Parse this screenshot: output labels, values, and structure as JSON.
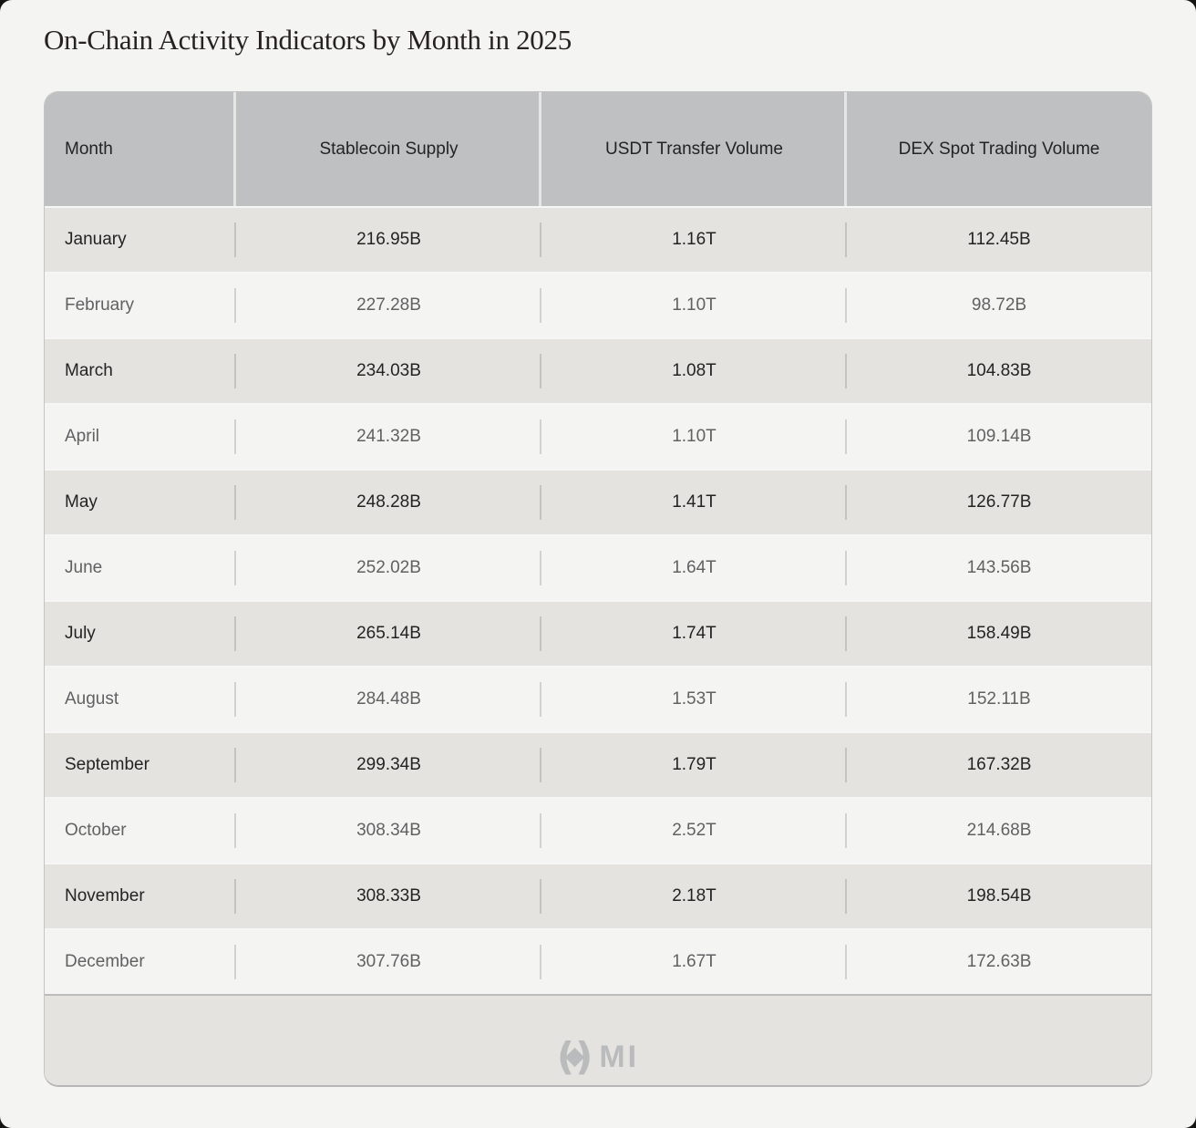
{
  "page": {
    "title": "On-Chain Activity Indicators by Month in 2025"
  },
  "table": {
    "columns": [
      "Month",
      "Stablecoin Supply",
      "USDT Transfer Volume",
      "DEX Spot Trading Volume"
    ],
    "rows": [
      {
        "month": "January",
        "stablecoin_supply": "216.95B",
        "usdt_transfer_volume": "1.16T",
        "dex_spot_trading_volume": "112.45B"
      },
      {
        "month": "February",
        "stablecoin_supply": "227.28B",
        "usdt_transfer_volume": "1.10T",
        "dex_spot_trading_volume": "98.72B"
      },
      {
        "month": "March",
        "stablecoin_supply": "234.03B",
        "usdt_transfer_volume": "1.08T",
        "dex_spot_trading_volume": "104.83B"
      },
      {
        "month": "April",
        "stablecoin_supply": "241.32B",
        "usdt_transfer_volume": "1.10T",
        "dex_spot_trading_volume": "109.14B"
      },
      {
        "month": "May",
        "stablecoin_supply": "248.28B",
        "usdt_transfer_volume": "1.41T",
        "dex_spot_trading_volume": "126.77B"
      },
      {
        "month": "June",
        "stablecoin_supply": "252.02B",
        "usdt_transfer_volume": "1.64T",
        "dex_spot_trading_volume": "143.56B"
      },
      {
        "month": "July",
        "stablecoin_supply": "265.14B",
        "usdt_transfer_volume": "1.74T",
        "dex_spot_trading_volume": "158.49B"
      },
      {
        "month": "August",
        "stablecoin_supply": "284.48B",
        "usdt_transfer_volume": "1.53T",
        "dex_spot_trading_volume": "152.11B"
      },
      {
        "month": "September",
        "stablecoin_supply": "299.34B",
        "usdt_transfer_volume": "1.79T",
        "dex_spot_trading_volume": "167.32B"
      },
      {
        "month": "October",
        "stablecoin_supply": "308.34B",
        "usdt_transfer_volume": "2.52T",
        "dex_spot_trading_volume": "214.68B"
      },
      {
        "month": "November",
        "stablecoin_supply": "308.33B",
        "usdt_transfer_volume": "2.18T",
        "dex_spot_trading_volume": "198.54B"
      },
      {
        "month": "December",
        "stablecoin_supply": "307.76B",
        "usdt_transfer_volume": "1.67T",
        "dex_spot_trading_volume": "172.63B"
      }
    ]
  },
  "footer": {
    "logo_text": "MI"
  },
  "colors": {
    "page_background": "#f4f4f3",
    "header_background": "#bfc0c2",
    "row_odd_background": "#e4e3e0",
    "row_even_background": "#f4f4f2",
    "row_odd_text": "#232321",
    "row_even_text": "#616164",
    "footer_background": "#e4e3e0",
    "logo_color": "#b9bbbd",
    "title_color": "#272220"
  },
  "chart_data": {
    "type": "table",
    "title": "On-Chain Activity Indicators by Month in 2025",
    "categories": [
      "January",
      "February",
      "March",
      "April",
      "May",
      "June",
      "July",
      "August",
      "September",
      "October",
      "November",
      "December"
    ],
    "series": [
      {
        "name": "Stablecoin Supply",
        "unit": "B",
        "values": [
          216.95,
          227.28,
          234.03,
          241.32,
          248.28,
          252.02,
          265.14,
          284.48,
          299.34,
          308.34,
          308.33,
          307.76
        ]
      },
      {
        "name": "USDT Transfer Volume",
        "unit": "T",
        "values": [
          1.16,
          1.1,
          1.08,
          1.1,
          1.41,
          1.64,
          1.74,
          1.53,
          1.79,
          2.52,
          2.18,
          1.67
        ]
      },
      {
        "name": "DEX Spot Trading Volume",
        "unit": "B",
        "values": [
          112.45,
          98.72,
          104.83,
          109.14,
          126.77,
          143.56,
          158.49,
          152.11,
          167.32,
          214.68,
          198.54,
          172.63
        ]
      }
    ],
    "legend_position": "none",
    "grid": false
  }
}
